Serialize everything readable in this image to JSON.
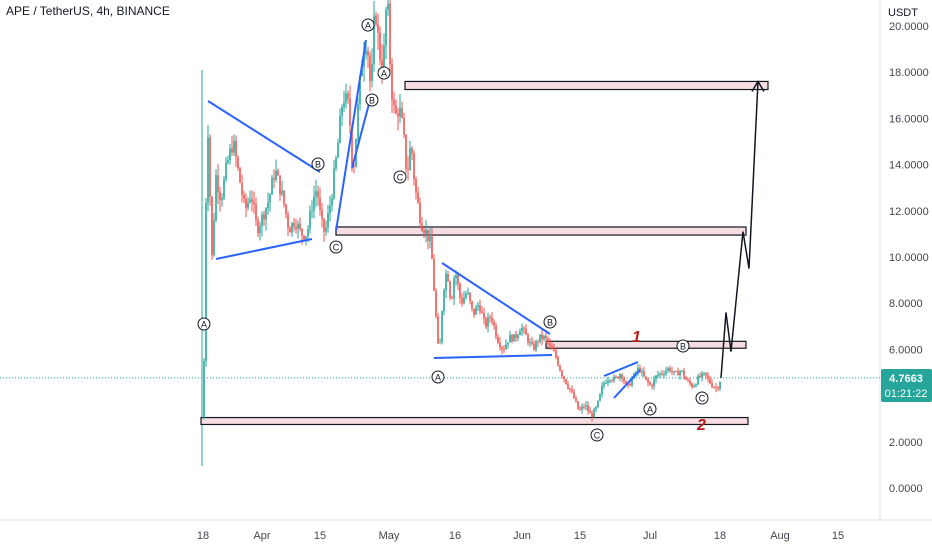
{
  "header": {
    "title": "APE / TetherUS, 4h, BINANCE",
    "currency": "USDT"
  },
  "price_tag": {
    "price": "4.7663",
    "countdown": "01:21:22",
    "color": "#26a69a"
  },
  "colors": {
    "bull": "#26a69a",
    "bear": "#ef5350",
    "wave": "#2962ff",
    "zone_fill": "#f6dde1",
    "marker": "#e53935",
    "axis_text": "#434651"
  },
  "chart_data": {
    "type": "candlestick",
    "title": "APE / TetherUS, 4h, BINANCE",
    "ylabel": "USDT",
    "ylim": [
      -1,
      21
    ],
    "y_ticks": [
      "20.0000",
      "18.0000",
      "16.0000",
      "14.0000",
      "12.0000",
      "10.0000",
      "8.0000",
      "6.0000",
      "4.0000",
      "2.0000",
      "0.0000"
    ],
    "x_ticks": [
      "18",
      "Apr",
      "15",
      "May",
      "16",
      "Jun",
      "15",
      "Jul",
      "18",
      "Aug",
      "15"
    ],
    "price_path": [
      [
        0,
        3.0
      ],
      [
        2,
        8.0
      ],
      [
        4,
        17.0
      ],
      [
        6,
        14.0
      ],
      [
        9,
        10.0
      ],
      [
        13,
        13.5
      ],
      [
        18,
        12.5
      ],
      [
        24,
        14.0
      ],
      [
        30,
        15.0
      ],
      [
        36,
        13.5
      ],
      [
        42,
        12.0
      ],
      [
        48,
        12.8
      ],
      [
        54,
        11.2
      ],
      [
        60,
        11.8
      ],
      [
        66,
        12.5
      ],
      [
        72,
        13.8
      ],
      [
        80,
        12.5
      ],
      [
        86,
        11.2
      ],
      [
        92,
        11.6
      ],
      [
        98,
        11.0
      ],
      [
        104,
        11.0
      ],
      [
        110,
        12.5
      ],
      [
        114,
        13.0
      ],
      [
        118,
        11.5
      ],
      [
        122,
        11.0
      ],
      [
        128,
        12.5
      ],
      [
        134,
        14.5
      ],
      [
        140,
        17.0
      ],
      [
        146,
        16.5
      ],
      [
        150,
        13.5
      ],
      [
        156,
        17.0
      ],
      [
        160,
        19.0
      ],
      [
        164,
        19.5
      ],
      [
        168,
        17.0
      ],
      [
        172,
        21.0
      ],
      [
        176,
        19.0
      ],
      [
        180,
        18.0
      ],
      [
        184,
        21.5
      ],
      [
        188,
        17.5
      ],
      [
        192,
        16.0
      ],
      [
        196,
        16.5
      ],
      [
        200,
        15.5
      ],
      [
        204,
        13.5
      ],
      [
        208,
        15.0
      ],
      [
        212,
        13.0
      ],
      [
        218,
        11.5
      ],
      [
        224,
        11.0
      ],
      [
        228,
        10.5
      ],
      [
        232,
        8.0
      ],
      [
        236,
        5.5
      ],
      [
        240,
        8.5
      ],
      [
        244,
        9.5
      ],
      [
        248,
        8.0
      ],
      [
        252,
        9.5
      ],
      [
        258,
        8.0
      ],
      [
        264,
        8.5
      ],
      [
        270,
        7.5
      ],
      [
        276,
        8.0
      ],
      [
        282,
        7.0
      ],
      [
        288,
        7.5
      ],
      [
        294,
        6.5
      ],
      [
        300,
        6.0
      ],
      [
        306,
        6.5
      ],
      [
        312,
        6.5
      ],
      [
        318,
        7.0
      ],
      [
        324,
        6.5
      ],
      [
        330,
        6.0
      ],
      [
        336,
        6.5
      ],
      [
        342,
        6.5
      ],
      [
        348,
        6.0
      ],
      [
        352,
        5.8
      ],
      [
        358,
        5.0
      ],
      [
        364,
        4.5
      ],
      [
        370,
        4.0
      ],
      [
        376,
        3.3
      ],
      [
        382,
        3.6
      ],
      [
        388,
        3.1
      ],
      [
        394,
        3.5
      ],
      [
        400,
        4.5
      ],
      [
        406,
        4.8
      ],
      [
        412,
        4.7
      ],
      [
        418,
        5.0
      ],
      [
        424,
        4.3
      ],
      [
        430,
        4.8
      ],
      [
        436,
        5.2
      ],
      [
        442,
        4.7
      ],
      [
        448,
        4.4
      ],
      [
        454,
        4.9
      ],
      [
        460,
        5.0
      ],
      [
        466,
        5.2
      ],
      [
        472,
        4.9
      ],
      [
        478,
        5.1
      ],
      [
        484,
        4.6
      ],
      [
        490,
        4.4
      ],
      [
        496,
        4.8
      ],
      [
        502,
        4.9
      ],
      [
        508,
        4.5
      ],
      [
        514,
        4.3
      ],
      [
        518,
        4.77
      ]
    ],
    "projection": [
      [
        518,
        4.77
      ],
      [
        523,
        7.6
      ],
      [
        528,
        5.9
      ],
      [
        540,
        11.1
      ],
      [
        546,
        9.5
      ],
      [
        555,
        17.6
      ]
    ],
    "supply_demand_zones": [
      {
        "y_top": 17.6,
        "y_bottom": 17.25
      },
      {
        "y_top": 11.3,
        "y_bottom": 10.95
      },
      {
        "y_top": 6.35,
        "y_bottom": 6.05
      },
      {
        "y_top": 3.05,
        "y_bottom": 2.75
      }
    ],
    "wave_labels": [
      "A",
      "B",
      "C",
      "A",
      "B",
      "C",
      "B",
      "A",
      "C",
      "B",
      "A",
      "C"
    ],
    "count_labels": [
      "1",
      "2"
    ]
  }
}
